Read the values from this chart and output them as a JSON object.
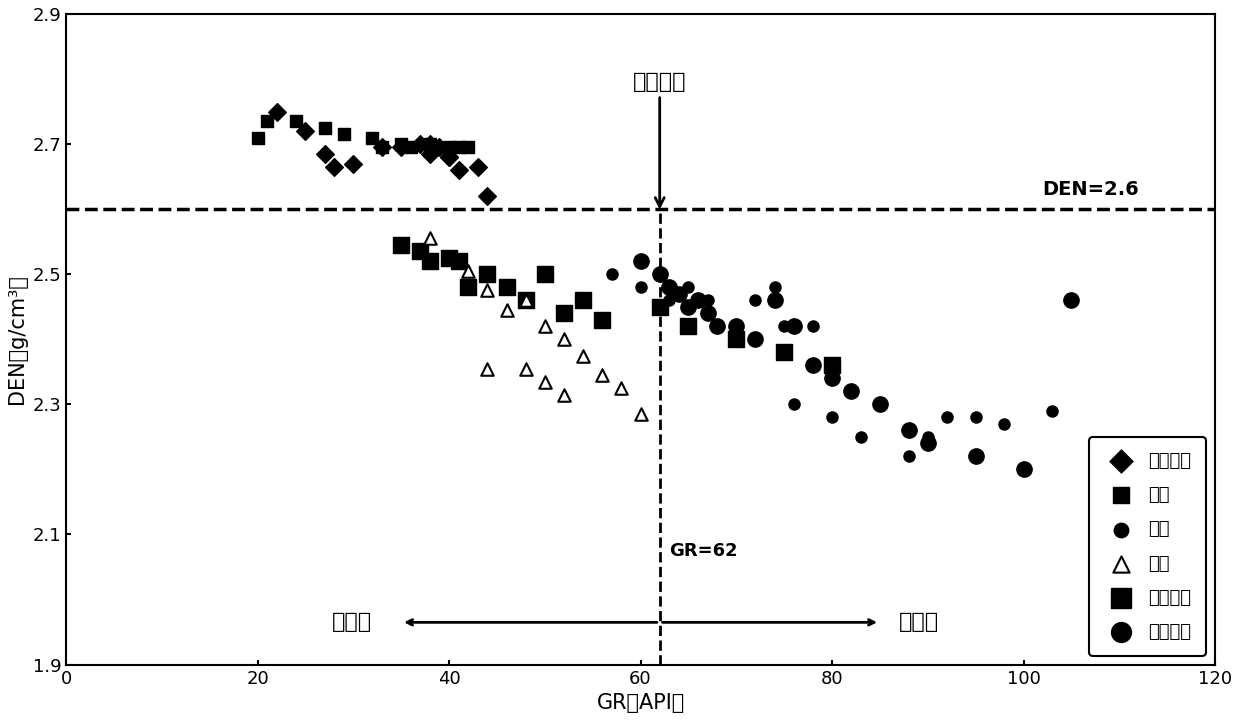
{
  "xlabel": "GR（API）",
  "ylabel": "DEN（g/cm³）",
  "xlim": [
    0,
    120
  ],
  "ylim": [
    1.9,
    2.9
  ],
  "xticks": [
    0,
    20,
    40,
    60,
    80,
    100,
    120
  ],
  "yticks": [
    1.9,
    2.1,
    2.3,
    2.5,
    2.7,
    2.9
  ],
  "den_line": 2.6,
  "gr_line": 62,
  "den_label": "DEN=2.6",
  "gr_label": "GR=62",
  "carbonate_label": "碳酸盐岩",
  "sandstone_label": "沙岩类",
  "mudstone_label": "泥岩类",
  "legend_labels": [
    "白云岩类",
    "灰岩",
    "泥岩",
    "沙岩",
    "杂质沙岩",
    "杂质泥岩"
  ],
  "baiyunyan_x": [
    22,
    25,
    27,
    28,
    30,
    33,
    35,
    37,
    38,
    39,
    40,
    41,
    43,
    44,
    38,
    40
  ],
  "baiyunyan_y": [
    2.75,
    2.72,
    2.685,
    2.665,
    2.67,
    2.695,
    2.695,
    2.7,
    2.7,
    2.695,
    2.68,
    2.66,
    2.665,
    2.62,
    2.685,
    2.68
  ],
  "limestone_x": [
    20,
    21,
    24,
    27,
    29,
    32,
    35,
    38,
    40,
    41,
    42,
    36,
    33
  ],
  "limestone_y": [
    2.71,
    2.735,
    2.735,
    2.725,
    2.715,
    2.71,
    2.7,
    2.7,
    2.695,
    2.695,
    2.695,
    2.695,
    2.695
  ],
  "mudrock_x": [
    57,
    60,
    63,
    65,
    67,
    68,
    70,
    72,
    74,
    75,
    76,
    78,
    80,
    82,
    83,
    85,
    88,
    90,
    92,
    95,
    98,
    103
  ],
  "mudrock_y": [
    2.5,
    2.48,
    2.46,
    2.48,
    2.46,
    2.42,
    2.4,
    2.46,
    2.48,
    2.42,
    2.3,
    2.42,
    2.28,
    2.32,
    2.25,
    2.3,
    2.22,
    2.25,
    2.28,
    2.28,
    2.27,
    2.29
  ],
  "sandrock_x": [
    38,
    42,
    44,
    46,
    48,
    50,
    52,
    54,
    56,
    58,
    60,
    48,
    50,
    52,
    44
  ],
  "sandrock_y": [
    2.555,
    2.505,
    2.475,
    2.445,
    2.46,
    2.42,
    2.4,
    2.375,
    2.345,
    2.325,
    2.285,
    2.355,
    2.335,
    2.315,
    2.355
  ],
  "mixed_sand_x": [
    35,
    37,
    38,
    40,
    41,
    42,
    44,
    46,
    48,
    50,
    52,
    54,
    56,
    62,
    65,
    70,
    75,
    80
  ],
  "mixed_sand_y": [
    2.545,
    2.535,
    2.52,
    2.525,
    2.52,
    2.48,
    2.5,
    2.48,
    2.46,
    2.5,
    2.44,
    2.46,
    2.43,
    2.45,
    2.42,
    2.4,
    2.38,
    2.36
  ],
  "mixed_mud_x": [
    60,
    62,
    63,
    64,
    65,
    66,
    67,
    68,
    70,
    72,
    74,
    75,
    76,
    78,
    80,
    82,
    85,
    88,
    90,
    95,
    100,
    105
  ],
  "mixed_mud_y": [
    2.52,
    2.5,
    2.48,
    2.47,
    2.45,
    2.46,
    2.44,
    2.42,
    2.42,
    2.4,
    2.46,
    2.38,
    2.42,
    2.36,
    2.34,
    2.32,
    2.3,
    2.26,
    2.24,
    2.22,
    2.2,
    2.46
  ],
  "background_color": "#ffffff"
}
